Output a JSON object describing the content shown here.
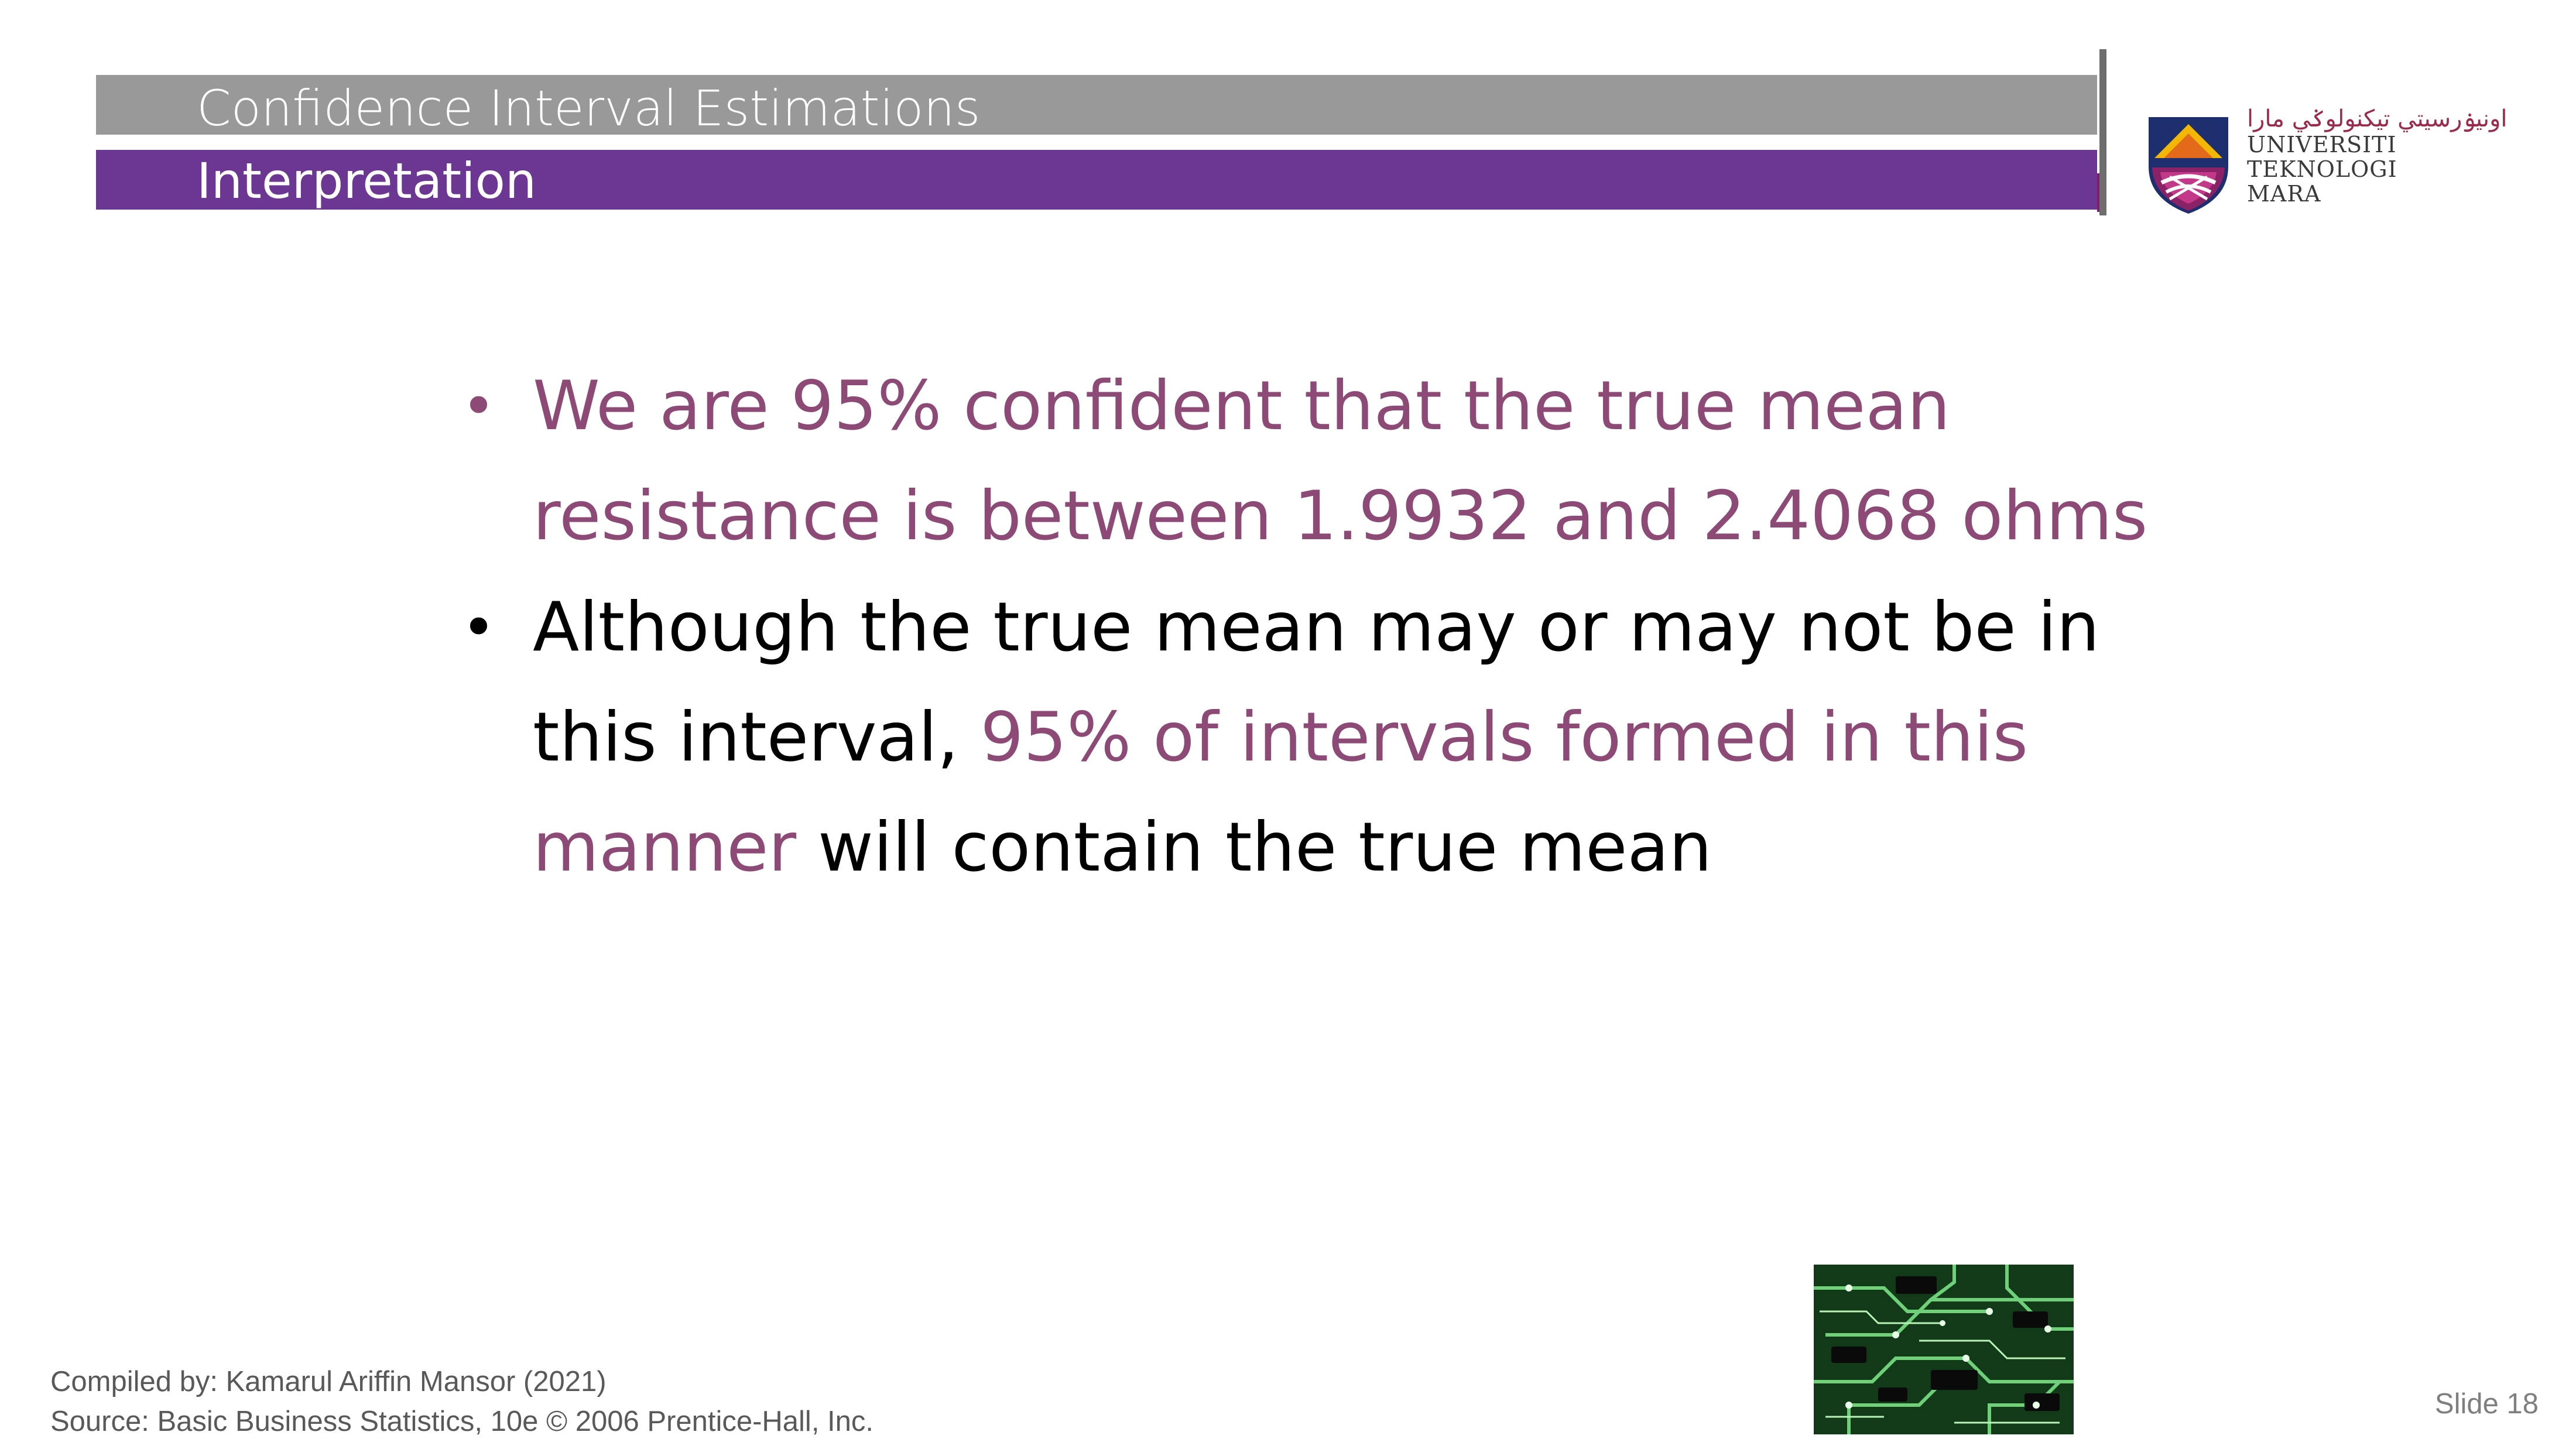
{
  "header": {
    "title": "Confidence Interval Estimations",
    "subtitle": "Interpretation"
  },
  "logo": {
    "jawi": "اونيۏرسيتي تيكنولوݢي مارا",
    "line1": "UNIVERSITI",
    "line2": "TEKNOLOGI",
    "line3": "MARA"
  },
  "bullets": [
    {
      "text": "We are 95% confident that the true mean resistance is between 1.9932  and  2.4068 ohms"
    },
    {
      "part1": "Although the true mean may or may not be in this interval, ",
      "part2": "95% of intervals formed in this manner",
      "part3": " will contain the true mean"
    }
  ],
  "bullet_glyph": "•",
  "footer": {
    "compiled_by": "Compiled by: Kamarul Ariffin Mansor (2021)",
    "source": "Source: Basic Business Statistics, 10e © 2006 Prentice-Hall, Inc."
  },
  "slide_number": "Slide 18",
  "colors": {
    "header_gray": "#999999",
    "header_purple": "#6c3793",
    "accent_text": "#8e4a76"
  },
  "icons": {
    "logo": "uitm-crest-icon",
    "image": "circuit-board-image"
  }
}
